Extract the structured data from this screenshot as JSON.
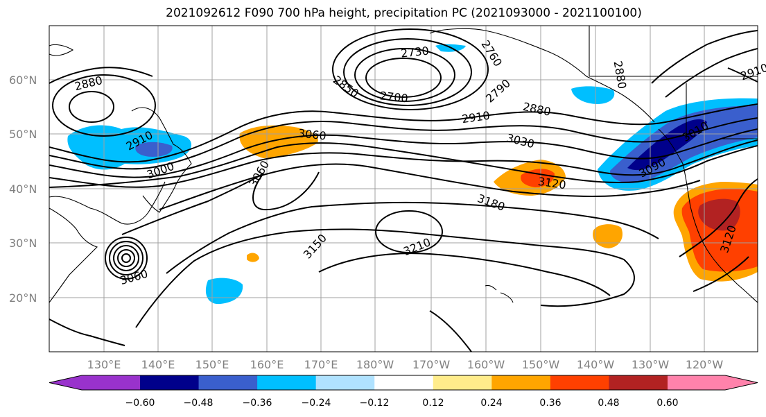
{
  "title": "2021092612 F090 700 hPa height, precipitation PC (2021093000 - 2021100100)",
  "lat_labels": [
    "20°N",
    "30°N",
    "40°N",
    "50°N",
    "60°N"
  ],
  "lon_labels": [
    "130°E",
    "140°E",
    "150°E",
    "160°E",
    "170°E",
    "180°W",
    "170°W",
    "160°W",
    "150°W",
    "140°W",
    "130°W",
    "120°W"
  ],
  "contour_labels": [
    "2880",
    "2910",
    "3000",
    "3060",
    "3060",
    "2730",
    "2760",
    "2850",
    "2700",
    "2790",
    "2910",
    "2880",
    "2880",
    "3030",
    "3120",
    "3180",
    "3150",
    "3210",
    "3060",
    "3090",
    "3010",
    "3120",
    "2910"
  ],
  "colorbar": {
    "ticks": [
      "−0.60",
      "−0.48",
      "−0.36",
      "−0.24",
      "−0.12",
      "0.12",
      "0.24",
      "0.36",
      "0.48",
      "0.60"
    ],
    "colors": [
      "#9932cc",
      "#00008b",
      "#3a5fcd",
      "#00bfff",
      "#b0e2ff",
      "#ffffff",
      "#ffec8b",
      "#ffa500",
      "#ff4000",
      "#b22222",
      "#ff82ab"
    ]
  },
  "colors": {
    "grid": "#a0a0a0",
    "contour": "#000000"
  }
}
